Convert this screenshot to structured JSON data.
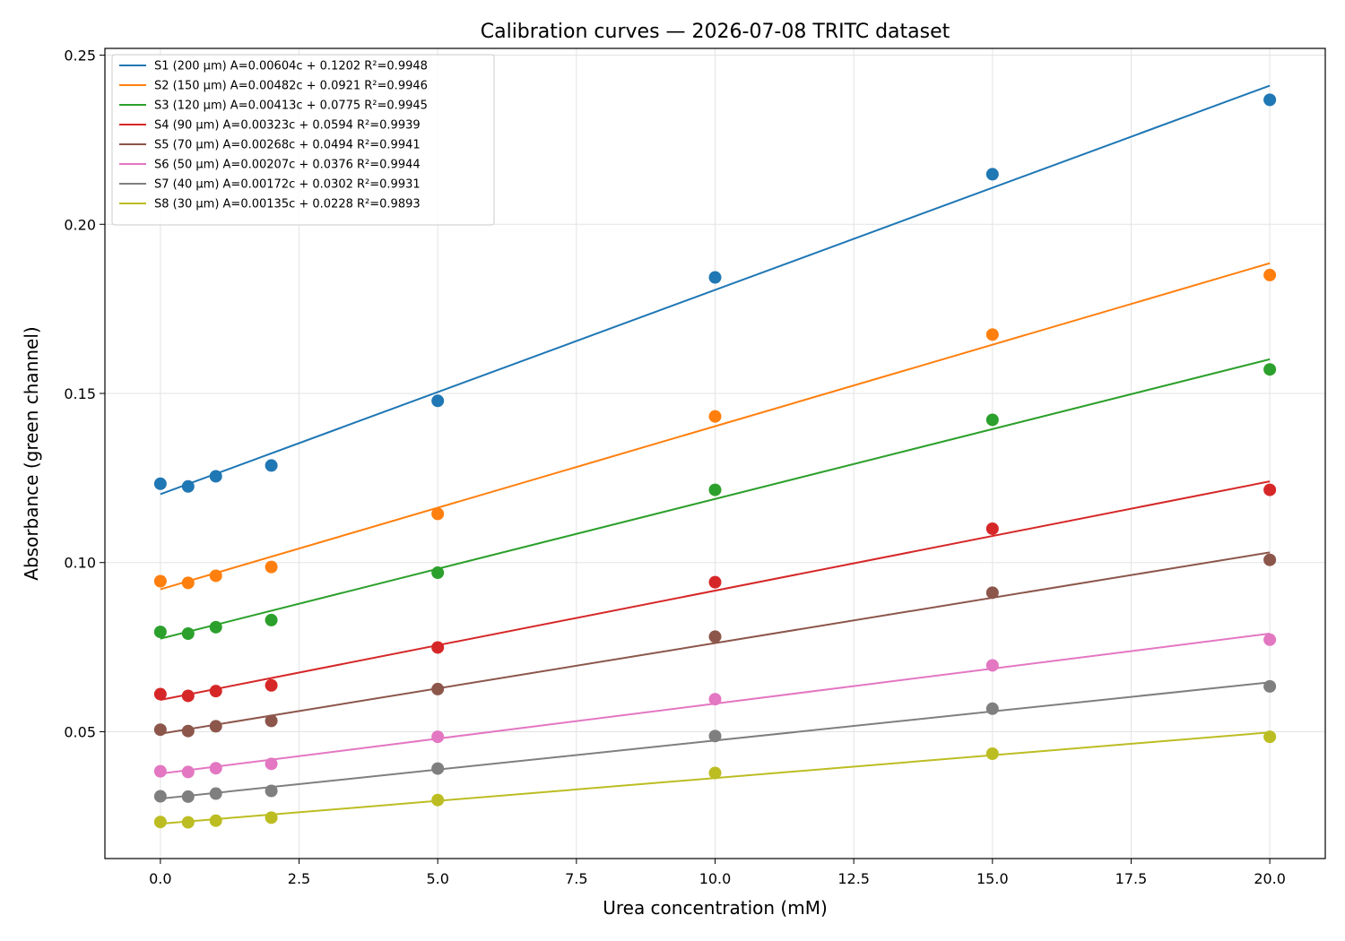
{
  "chart_data": {
    "type": "scatter",
    "title": "Calibration curves — 2026-07-08 TRITC dataset",
    "xlabel": "Urea concentration (mM)",
    "ylabel": "Absorbance (green channel)",
    "xlim": [
      -1.0,
      21.0
    ],
    "ylim": [
      0.0125,
      0.252
    ],
    "xticks": [
      0.0,
      2.5,
      5.0,
      7.5,
      10.0,
      12.5,
      15.0,
      17.5,
      20.0
    ],
    "xtick_labels": [
      "0.0",
      "2.5",
      "5.0",
      "7.5",
      "10.0",
      "12.5",
      "15.0",
      "17.5",
      "20.0"
    ],
    "yticks": [
      0.05,
      0.1,
      0.15,
      0.2,
      0.25
    ],
    "ytick_labels": [
      "0.05",
      "0.10",
      "0.15",
      "0.20",
      "0.25"
    ],
    "grid": true,
    "legend_position": "top-left",
    "x": [
      0,
      0.5,
      1,
      2,
      5,
      10,
      15,
      20
    ],
    "series": [
      {
        "name": "S1 (200 µm)  A=0.00604c + 0.1202  R²=0.9948",
        "color": "#1f77b4",
        "slope": 0.00604,
        "intercept": 0.1202,
        "values": [
          0.1233,
          0.1225,
          0.1255,
          0.1287,
          0.1478,
          0.1843,
          0.2148,
          0.2368
        ]
      },
      {
        "name": "S2 (150 µm)  A=0.00482c + 0.0921  R²=0.9946",
        "color": "#ff7f0e",
        "slope": 0.00482,
        "intercept": 0.0921,
        "values": [
          0.0945,
          0.094,
          0.0961,
          0.0987,
          0.1144,
          0.1432,
          0.1674,
          0.185
        ]
      },
      {
        "name": "S3 (120 µm)  A=0.00413c + 0.0775  R²=0.9945",
        "color": "#2ca02c",
        "slope": 0.00413,
        "intercept": 0.0775,
        "values": [
          0.0795,
          0.079,
          0.0809,
          0.083,
          0.097,
          0.1215,
          0.1422,
          0.1571
        ]
      },
      {
        "name": "S4 (90 µm)  A=0.00323c + 0.0594  R²=0.9939",
        "color": "#d62728",
        "slope": 0.00323,
        "intercept": 0.0594,
        "values": [
          0.0611,
          0.0606,
          0.062,
          0.0637,
          0.0749,
          0.0942,
          0.11,
          0.1215
        ]
      },
      {
        "name": "S5 (70 µm)  A=0.00268c + 0.0494  R²=0.9941",
        "color": "#8c564b",
        "slope": 0.00268,
        "intercept": 0.0494,
        "values": [
          0.0506,
          0.0502,
          0.0516,
          0.0532,
          0.0626,
          0.0781,
          0.0911,
          0.1008
        ]
      },
      {
        "name": "S6 (50 µm)  A=0.00207c + 0.0376  R²=0.9944",
        "color": "#e377c2",
        "slope": 0.00207,
        "intercept": 0.0376,
        "values": [
          0.0383,
          0.0381,
          0.0392,
          0.0405,
          0.0485,
          0.0596,
          0.0696,
          0.0772
        ]
      },
      {
        "name": "S7 (40 µm)  A=0.00172c + 0.0302  R²=0.9931",
        "color": "#7f7f7f",
        "slope": 0.00172,
        "intercept": 0.0302,
        "values": [
          0.0309,
          0.0308,
          0.0317,
          0.0325,
          0.0391,
          0.0487,
          0.0568,
          0.0634
        ]
      },
      {
        "name": "S8 (30 µm)  A=0.00135c + 0.0228  R²=0.9893",
        "color": "#bcbd22",
        "slope": 0.00135,
        "intercept": 0.0228,
        "values": [
          0.0233,
          0.0232,
          0.0237,
          0.0246,
          0.0298,
          0.0378,
          0.0435,
          0.0485
        ]
      }
    ]
  }
}
